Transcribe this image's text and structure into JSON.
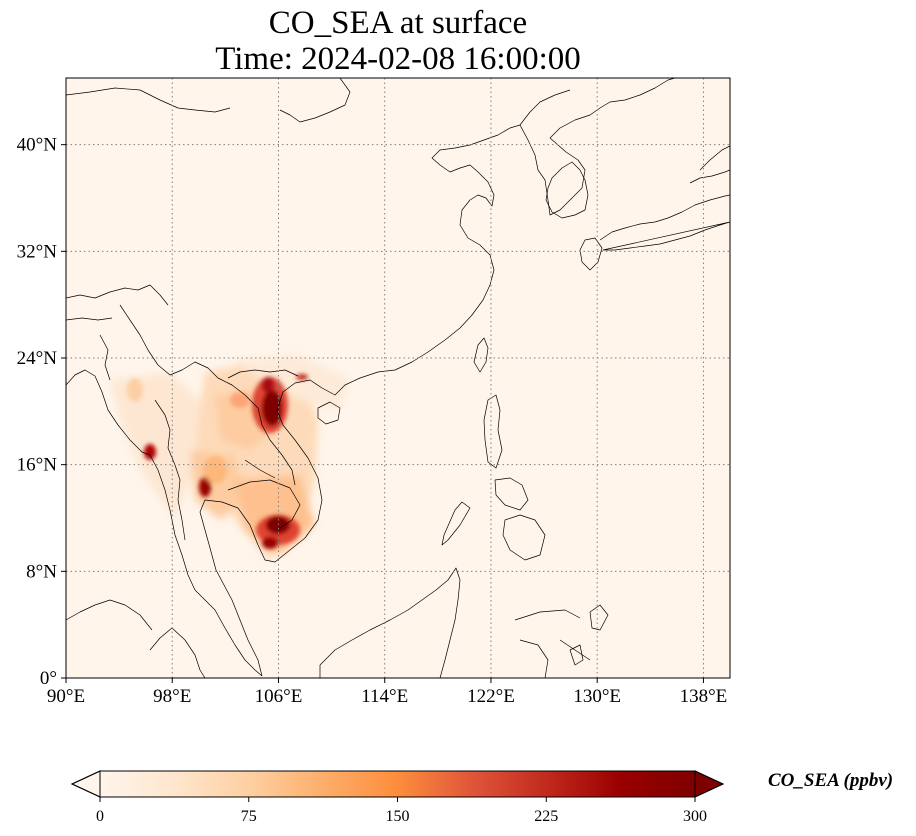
{
  "title": {
    "line1": "CO_SEA at surface",
    "line2": "Time: 2024-02-08 16:00:00"
  },
  "map": {
    "lon_range": [
      90,
      140
    ],
    "lat_range": [
      0,
      45
    ],
    "lon_ticks": [
      {
        "value": 90,
        "label": "90°E"
      },
      {
        "value": 98,
        "label": "98°E"
      },
      {
        "value": 106,
        "label": "106°E"
      },
      {
        "value": 114,
        "label": "114°E"
      },
      {
        "value": 122,
        "label": "122°E"
      },
      {
        "value": 130,
        "label": "130°E"
      },
      {
        "value": 138,
        "label": "138°E"
      }
    ],
    "lat_ticks": [
      {
        "value": 0,
        "label": "0°"
      },
      {
        "value": 8,
        "label": "8°N"
      },
      {
        "value": 16,
        "label": "16°N"
      },
      {
        "value": 24,
        "label": "24°N"
      },
      {
        "value": 32,
        "label": "32°N"
      },
      {
        "value": 40,
        "label": "40°N"
      }
    ],
    "gridlines": true,
    "background_color": "#fff5eb",
    "coastline_color": "#000000"
  },
  "colorbar": {
    "label": "CO_SEA (ppbv)",
    "min": 0,
    "max": 300,
    "extend": "both",
    "colormap": "OrRd",
    "ticks": [
      {
        "value": 0,
        "label": "0"
      },
      {
        "value": 75,
        "label": "75"
      },
      {
        "value": 150,
        "label": "150"
      },
      {
        "value": 225,
        "label": "225"
      },
      {
        "value": 300,
        "label": "300"
      }
    ],
    "stops": [
      "#fff5eb",
      "#fee6ce",
      "#fdd0a2",
      "#fdae6b",
      "#fd8d3c",
      "#e0563a",
      "#c12a1d",
      "#990000",
      "#7f0000"
    ]
  }
}
